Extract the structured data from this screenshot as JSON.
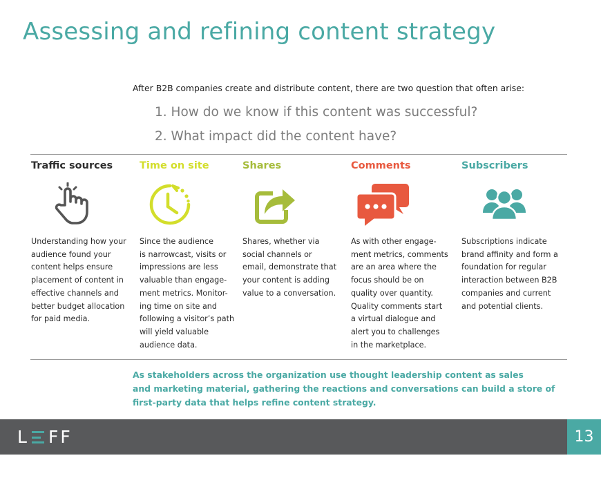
{
  "title": "Assessing and refining content strategy",
  "intro": "After B2B companies create and distribute content, there are two question that often arise:",
  "questions": [
    "1. How do we know if this content was successful?",
    "2. What impact did the content have?"
  ],
  "columns": [
    {
      "heading": "Traffic sources",
      "color": "#2f2f2f",
      "icon": "pointing-hand-icon",
      "text": "Understanding how your\naudience found your\ncontent helps ensure\nplacement of content in\neffective channels and\nbetter budget allocation\nfor paid media."
    },
    {
      "heading": "Time on site",
      "color": "#d3de2b",
      "icon": "clock-icon",
      "text": "Since the audience\nis narrowcast, visits or\nimpressions are less\nvaluable than engage-\nment metrics. Monitor-\ning time on site and\nfollowing a visitor’s path\nwill yield valuable\naudience data."
    },
    {
      "heading": "Shares",
      "color": "#a6bc3b",
      "icon": "share-icon",
      "text": "Shares, whether via\nsocial channels or\nemail, demonstrate that\nyour content is adding\nvalue to a conversation."
    },
    {
      "heading": "Comments",
      "color": "#e8593f",
      "icon": "speech-bubbles-icon",
      "text": "As with other engage-\nment metrics, comments\nare an area where the\nfocus should be on\nquality over quantity.\nQuality comments start\na virtual dialogue and\nalert you to challenges\nin the marketplace."
    },
    {
      "heading": "Subscribers",
      "color": "#4aa9a4",
      "icon": "group-icon",
      "text": "Subscriptions indicate\nbrand affinity and form a\nfoundation for regular\ninteraction between B2B\ncompanies and current\nand potential clients."
    }
  ],
  "summary": "As stakeholders across the organization use thought leadership content as sales\nand marketing material, gathering the reactions and conversations can build a store of\nfirst-party data that helps refine content strategy.",
  "footer": {
    "logo": "LEFF",
    "page_number": "13"
  },
  "colors": {
    "accent": "#4aa9a4",
    "footer_bg": "#58595b",
    "question_gray": "#7d7d7d"
  }
}
